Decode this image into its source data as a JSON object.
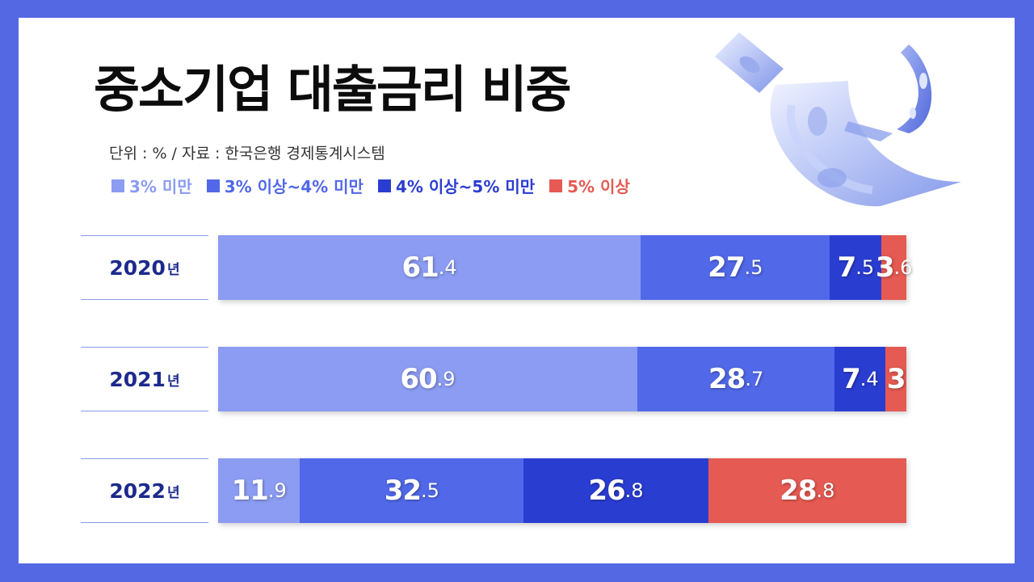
{
  "title": "중소기업 대출금리 비중",
  "source": "단위 : % / 자료 : 한국은행 경제통계시스템",
  "colors": {
    "frame": "#5568e3",
    "s1": "#8b9cf2",
    "s2": "#5168e8",
    "s3": "#2a3dd1",
    "s4": "#e55a52",
    "row_label": "#1c2a8c"
  },
  "chart_data": {
    "type": "bar",
    "orientation": "horizontal-stacked",
    "categories": [
      "2020년",
      "2021년",
      "2022년"
    ],
    "series": [
      {
        "name": "3% 미만",
        "values": [
          61.4,
          60.9,
          11.9
        ]
      },
      {
        "name": "3% 이상~4% 미만",
        "values": [
          27.5,
          28.7,
          32.5
        ]
      },
      {
        "name": "4% 이상~5% 미만",
        "values": [
          7.5,
          7.4,
          26.8
        ]
      },
      {
        "name": "5% 이상",
        "values": [
          3.6,
          3,
          28.8
        ]
      }
    ],
    "legend": "top-left",
    "value_labels": [
      [
        [
          "61",
          ".4"
        ],
        [
          "27",
          ".5"
        ],
        [
          "7",
          ".5"
        ],
        [
          "3",
          ".6"
        ]
      ],
      [
        [
          "60",
          ".9"
        ],
        [
          "28",
          ".7"
        ],
        [
          "7",
          ".4"
        ],
        [
          "3",
          ""
        ]
      ],
      [
        [
          "11",
          ".9"
        ],
        [
          "32",
          ".5"
        ],
        [
          "26",
          ".8"
        ],
        [
          "28",
          ".8"
        ]
      ]
    ],
    "row_labels": [
      {
        "year": "2020",
        "unit": "년"
      },
      {
        "year": "2021",
        "unit": "년"
      },
      {
        "year": "2022",
        "unit": "년"
      }
    ]
  }
}
